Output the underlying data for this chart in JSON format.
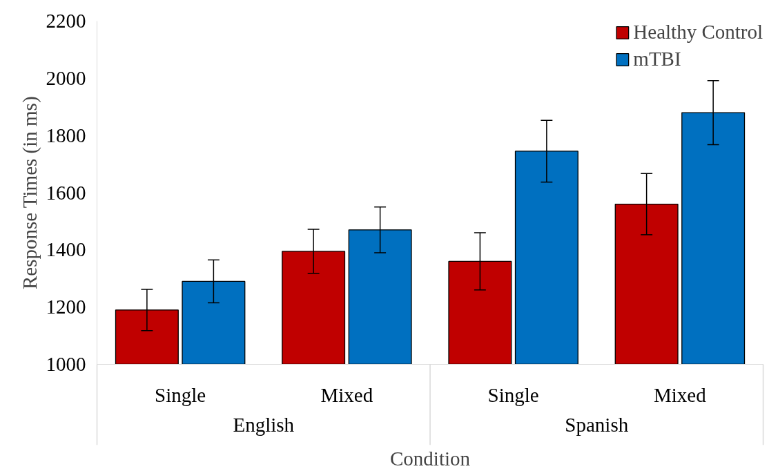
{
  "chart_data": {
    "type": "bar",
    "xlabel": "Condition",
    "ylabel": "Response Times (in ms)",
    "categories": [
      "Single",
      "Mixed",
      "Single",
      "Mixed"
    ],
    "annotations": [
      "English",
      "Spanish"
    ],
    "series": [
      {
        "name": "Healthy Control",
        "color": "#c00000",
        "values": [
          1190,
          1395,
          1360,
          1560
        ],
        "errors": [
          72,
          77,
          100,
          107
        ]
      },
      {
        "name": "mTBI",
        "color": "#0070c0",
        "values": [
          1290,
          1470,
          1745,
          1880
        ],
        "errors": [
          75,
          80,
          108,
          112
        ]
      }
    ],
    "ylim": [
      1000,
      2200
    ],
    "yticks": [
      1000,
      1200,
      1400,
      1600,
      1800,
      2000,
      2200
    ],
    "grid": false,
    "legend": "top right"
  }
}
